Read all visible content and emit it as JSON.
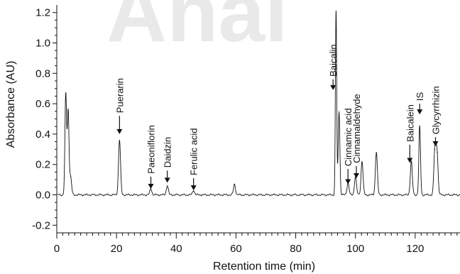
{
  "chart_data": {
    "type": "line",
    "xlabel": "Retention time (min)",
    "ylabel": "Absorbance (AU)",
    "xlim": [
      0,
      135
    ],
    "ylim": [
      -0.25,
      1.25
    ],
    "x_ticks": [
      "0",
      "20",
      "40",
      "60",
      "80",
      "100",
      "120"
    ],
    "y_ticks": [
      "-0.2",
      "0.0",
      "0.2",
      "0.4",
      "0.6",
      "0.8",
      "1.0",
      "1.2"
    ],
    "grid": false,
    "watermark": "Anal",
    "peaks": [
      {
        "x": 3.0,
        "y": 0.66
      },
      {
        "x": 3.8,
        "y": 0.55
      },
      {
        "x": 4.6,
        "y": 0.12
      },
      {
        "x": 21.0,
        "y": 0.36
      },
      {
        "x": 31.5,
        "y": 0.04
      },
      {
        "x": 37.0,
        "y": 0.06
      },
      {
        "x": 45.8,
        "y": 0.03
      },
      {
        "x": 59.5,
        "y": 0.07
      },
      {
        "x": 93.5,
        "y": 1.21
      },
      {
        "x": 94.5,
        "y": 0.55
      },
      {
        "x": 97.5,
        "y": 0.08
      },
      {
        "x": 100.0,
        "y": 0.12
      },
      {
        "x": 102.2,
        "y": 0.22
      },
      {
        "x": 107.0,
        "y": 0.28
      },
      {
        "x": 118.7,
        "y": 0.22
      },
      {
        "x": 121.5,
        "y": 0.45
      },
      {
        "x": 126.6,
        "y": 0.3
      },
      {
        "x": 127.3,
        "y": 0.28
      }
    ],
    "annotations": [
      {
        "text": "Puerarin",
        "x": 21.0,
        "arrow_tip": 0.4,
        "arrow_tail": 0.52,
        "rotated": true
      },
      {
        "text": "Paeoniflorin",
        "x": 31.5,
        "arrow_tip": 0.04,
        "arrow_tail": 0.12,
        "rotated": true
      },
      {
        "text": "Daidzin",
        "x": 37.0,
        "arrow_tip": 0.08,
        "arrow_tail": 0.16,
        "rotated": true
      },
      {
        "text": "Ferulic acid",
        "x": 45.8,
        "arrow_tip": 0.03,
        "arrow_tail": 0.11,
        "rotated": true
      },
      {
        "text": "Baicalin",
        "x": 92.5,
        "arrow_tip": 0.69,
        "arrow_tail": 0.76,
        "rotated": true
      },
      {
        "text": "Cinnamic acid",
        "x": 97.5,
        "arrow_tip": 0.07,
        "arrow_tail": 0.17,
        "rotated": true
      },
      {
        "text": "Cinnamaldehyde",
        "x": 100.3,
        "arrow_tip": 0.11,
        "arrow_tail": 0.19,
        "rotated": true
      },
      {
        "text": "Baicalein",
        "x": 118.2,
        "arrow_tip": 0.21,
        "arrow_tail": 0.33,
        "rotated": true
      },
      {
        "text": "IS",
        "x": 121.5,
        "arrow_tip": 0.53,
        "arrow_tail": 0.6,
        "rotated": true
      },
      {
        "text": "Glycyrrhizin",
        "x": 126.8,
        "arrow_tip": 0.32,
        "arrow_tail": 0.38,
        "rotated": true
      }
    ]
  }
}
